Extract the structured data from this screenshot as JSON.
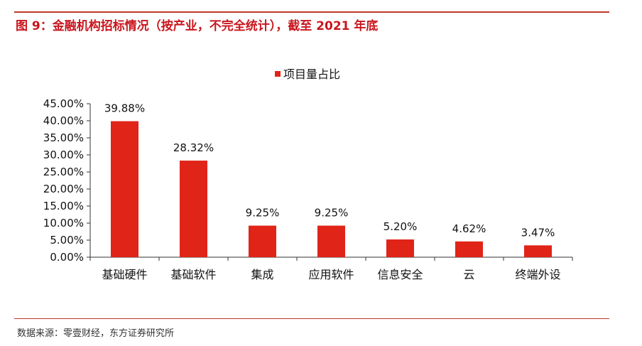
{
  "figure": {
    "title": "图 9：金融机构招标情况（按产业，不完全统计），截至 2021 年底",
    "source": "数据来源：零壹财经，东方证券研究所"
  },
  "chart_data": {
    "type": "bar",
    "title": "",
    "legend": "项目量占比",
    "legend_position": "top-center",
    "categories": [
      "基础硬件",
      "基础软件",
      "集成",
      "应用软件",
      "信息安全",
      "云",
      "终端外设"
    ],
    "series": [
      {
        "name": "项目量占比",
        "values": [
          39.88,
          28.32,
          9.25,
          9.25,
          5.2,
          4.62,
          3.47
        ],
        "labels": [
          "39.88%",
          "28.32%",
          "9.25%",
          "9.25%",
          "5.20%",
          "4.62%",
          "3.47%"
        ]
      }
    ],
    "ylim": [
      0,
      45
    ],
    "y_ticks": [
      0,
      5,
      10,
      15,
      20,
      25,
      30,
      35,
      40,
      45
    ],
    "y_tick_labels": [
      "0.00%",
      "5.00%",
      "10.00%",
      "15.00%",
      "20.00%",
      "25.00%",
      "30.00%",
      "35.00%",
      "40.00%",
      "45.00%"
    ],
    "xlabel": "",
    "ylabel": "",
    "grid": false,
    "bar_color": "#e02418"
  }
}
